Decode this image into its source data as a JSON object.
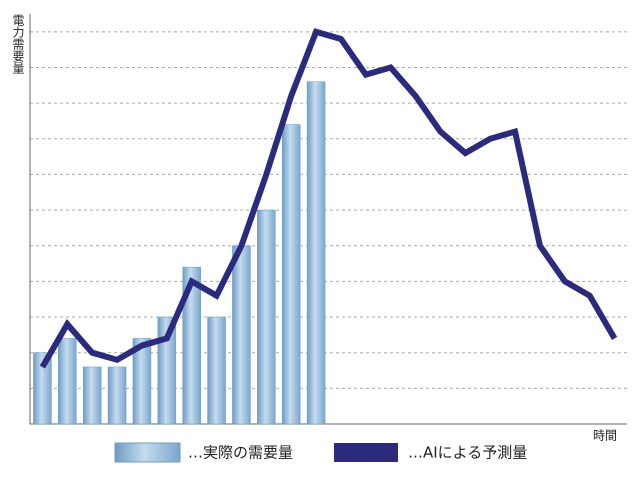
{
  "chart_data": {
    "type": "bar-line",
    "y_label": "電力需要量",
    "x_label": "時間",
    "categories": [
      null,
      null,
      null,
      null,
      null,
      null,
      null,
      null,
      null,
      null,
      null,
      null,
      null,
      null,
      null,
      null,
      null,
      null,
      null,
      null,
      null,
      null,
      null,
      null
    ],
    "series": [
      {
        "name": "…実際の需要量",
        "type": "bar",
        "color": "#8fb8d8",
        "values": [
          2,
          2.4,
          1.6,
          1.6,
          2.4,
          3,
          4.4,
          3,
          5,
          6,
          8.4,
          9.6,
          null,
          null,
          null,
          null,
          null,
          null,
          null,
          null,
          null,
          null,
          null,
          null
        ]
      },
      {
        "name": "…AIによる予測量",
        "type": "line",
        "color": "#2b2a7d",
        "values": [
          1.6,
          2.8,
          2,
          1.8,
          2.2,
          2.4,
          4,
          3.6,
          5,
          7,
          9.2,
          11,
          10.8,
          9.8,
          10,
          9.2,
          8.2,
          7.6,
          8,
          8.2,
          5,
          4,
          3.6,
          2.4
        ]
      }
    ],
    "ylim": [
      0,
      11.5
    ],
    "yticks": [
      1,
      2,
      3,
      4,
      5,
      6,
      7,
      8,
      9,
      10,
      11
    ],
    "grid": true
  }
}
